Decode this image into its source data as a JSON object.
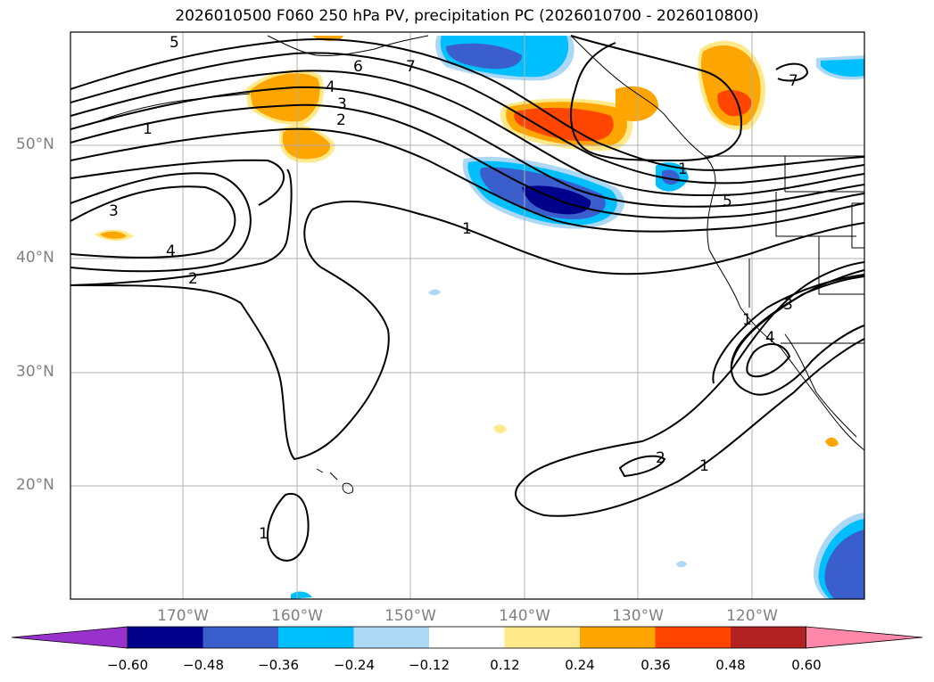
{
  "title": "2026010500 F060 250 hPa PV, precipitation PC (2026010700 - 2026010800)",
  "lat_labels": [
    "50°N",
    "40°N",
    "30°N",
    "20°N"
  ],
  "lon_labels": [
    "170°W",
    "160°W",
    "150°W",
    "140°W",
    "130°W",
    "120°W"
  ],
  "colorbar": {
    "ticks": [
      "−0.60",
      "−0.48",
      "−0.36",
      "−0.24",
      "−0.12",
      "0.12",
      "0.24",
      "0.36",
      "0.48",
      "0.60"
    ],
    "colors": [
      "#9932cc",
      "#00008b",
      "#3a5fcd",
      "#00bfff",
      "#add8f5",
      "#ffffff",
      "#ffe98a",
      "#ffa500",
      "#ff4500",
      "#b22222",
      "#ff88aa"
    ]
  },
  "contour_labels": [
    "5",
    "6",
    "7",
    "4",
    "3",
    "2",
    "1",
    "1",
    "3",
    "4",
    "2",
    "1",
    "5",
    "7",
    "1",
    "3",
    "4",
    "1",
    "2",
    "1"
  ]
}
